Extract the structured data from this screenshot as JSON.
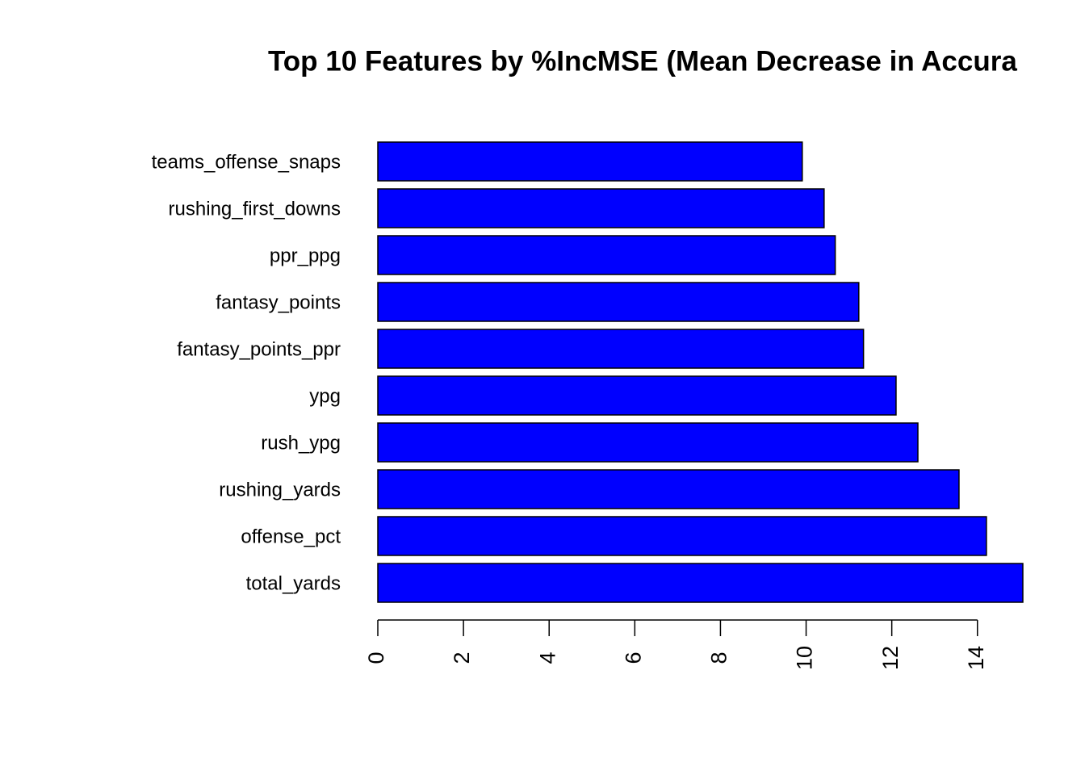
{
  "chart_data": {
    "type": "barh",
    "title": "Top 10 Features by %IncMSE (Mean Decrease in Accura",
    "categories": [
      "teams_offense_snaps",
      "rushing_first_downs",
      "ppr_ppg",
      "fantasy_points",
      "fantasy_points_ppr",
      "ypg",
      "rush_ypg",
      "rushing_yards",
      "offense_pct",
      "total_yards"
    ],
    "values": [
      9.91,
      10.42,
      10.68,
      11.23,
      11.34,
      12.1,
      12.61,
      13.57,
      14.21,
      15.06
    ],
    "color": "#0000ff",
    "xlim": [
      0,
      15.06
    ],
    "xticks": [
      0,
      2,
      4,
      6,
      8,
      10,
      12,
      14
    ]
  }
}
